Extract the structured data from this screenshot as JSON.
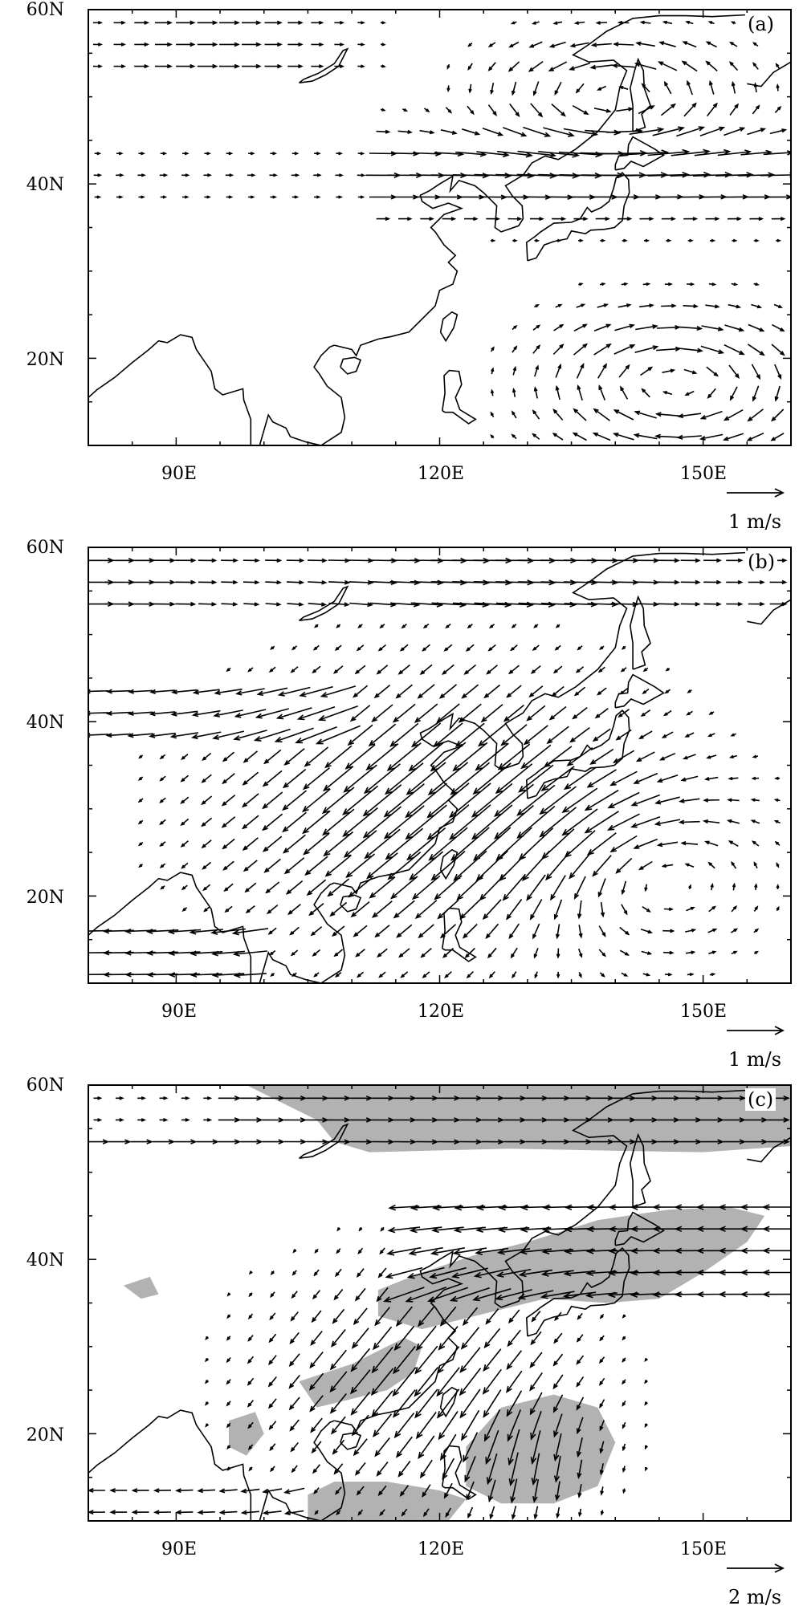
{
  "panels": [
    {
      "label": "(a)",
      "ref_vector": "1 m/s",
      "shading": false
    },
    {
      "label": "(b)",
      "ref_vector": "1 m/s",
      "shading": false
    },
    {
      "label": "(c)",
      "ref_vector": "2 m/s",
      "shading": true
    }
  ],
  "axes": {
    "y_ticks": [
      "60N",
      "40N",
      "20N"
    ],
    "x_ticks": [
      "90E",
      "120E",
      "150E"
    ]
  },
  "colors": {
    "shading": "#b2b2b2",
    "vectors": "#000000",
    "coast": "#000000"
  }
}
